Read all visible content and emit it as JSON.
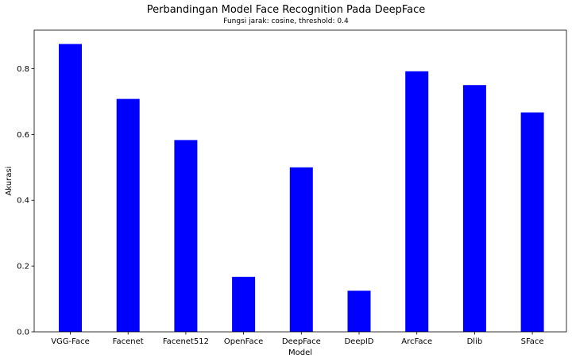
{
  "chart_data": {
    "type": "bar",
    "title": "Perbandingan Model Face Recognition Pada DeepFace",
    "subtitle": "Fungsi jarak: cosine, threshold: 0.4",
    "xlabel": "Model",
    "ylabel": "Akurasi",
    "categories": [
      "VGG-Face",
      "Facenet",
      "Facenet512",
      "OpenFace",
      "DeepFace",
      "DeepID",
      "ArcFace",
      "Dlib",
      "SFace"
    ],
    "values": [
      0.875,
      0.708,
      0.583,
      0.167,
      0.5,
      0.125,
      0.792,
      0.75,
      0.667
    ],
    "ylim": [
      0,
      0.917
    ],
    "yticks": [
      "0.0",
      "0.2",
      "0.4",
      "0.6",
      "0.8"
    ],
    "grid": false,
    "bar_color": "#0000ff"
  }
}
